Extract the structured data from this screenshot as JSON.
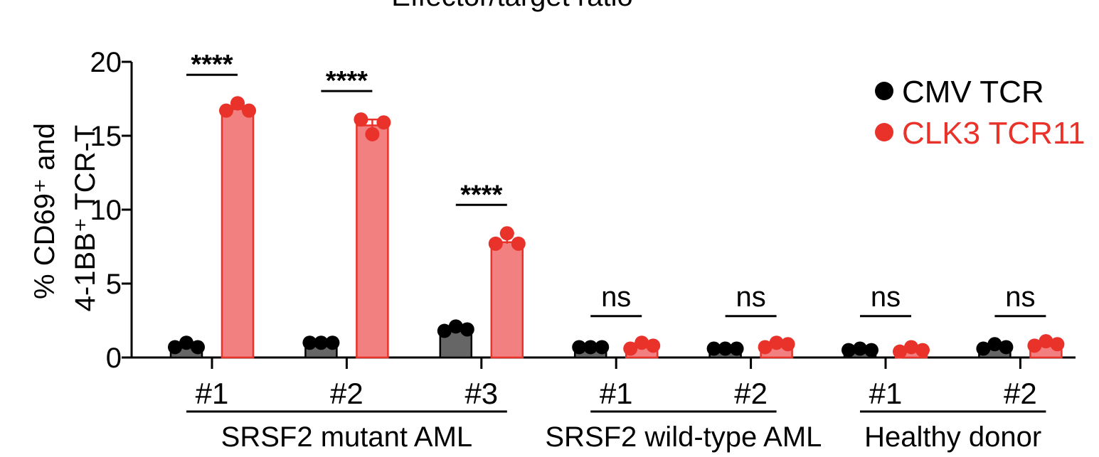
{
  "chart_data": {
    "type": "bar",
    "title": "Effector/target ratio",
    "ylabel_line1": "% CD69⁺ and",
    "ylabel_line2": "4-1BB⁺ TCR-T",
    "ylim": [
      0,
      20
    ],
    "yticks": [
      0,
      5,
      10,
      15,
      20
    ],
    "grid": false,
    "legend_position": "top-right",
    "categories": [
      "#1",
      "#2",
      "#3",
      "#1",
      "#2",
      "#1",
      "#2"
    ],
    "groups": [
      {
        "label": "SRSF2 mutant AML",
        "categories": [
          0,
          1,
          2
        ]
      },
      {
        "label": "SRSF2 wild-type AML",
        "categories": [
          3,
          4
        ]
      },
      {
        "label": "Healthy donor",
        "categories": [
          5,
          6
        ]
      }
    ],
    "series": [
      {
        "name": "CMV TCR",
        "color": "#000000",
        "bar_fill": "#666666",
        "values": [
          0.8,
          1.0,
          1.9,
          0.7,
          0.6,
          0.5,
          0.7
        ],
        "points": [
          [
            0.7,
            1.0,
            0.7
          ],
          [
            1.0,
            1.0,
            1.0
          ],
          [
            1.8,
            2.1,
            1.9
          ],
          [
            0.7,
            0.7,
            0.7
          ],
          [
            0.6,
            0.6,
            0.6
          ],
          [
            0.5,
            0.6,
            0.5
          ],
          [
            0.6,
            0.9,
            0.7
          ]
        ]
      },
      {
        "name": "CLK3 TCR11",
        "color": "#e8322a",
        "bar_fill": "#f28080",
        "values": [
          16.8,
          15.7,
          7.8,
          0.8,
          0.8,
          0.6,
          0.9
        ],
        "points": [
          [
            16.7,
            17.2,
            16.7
          ],
          [
            16.1,
            15.1,
            15.9
          ],
          [
            7.7,
            8.4,
            7.7
          ],
          [
            0.6,
            1.0,
            0.8
          ],
          [
            0.7,
            1.0,
            0.9
          ],
          [
            0.4,
            0.7,
            0.5
          ],
          [
            0.8,
            1.1,
            0.9
          ]
        ]
      }
    ],
    "significance": [
      "****",
      "****",
      "****",
      "ns",
      "ns",
      "ns",
      "ns"
    ]
  }
}
